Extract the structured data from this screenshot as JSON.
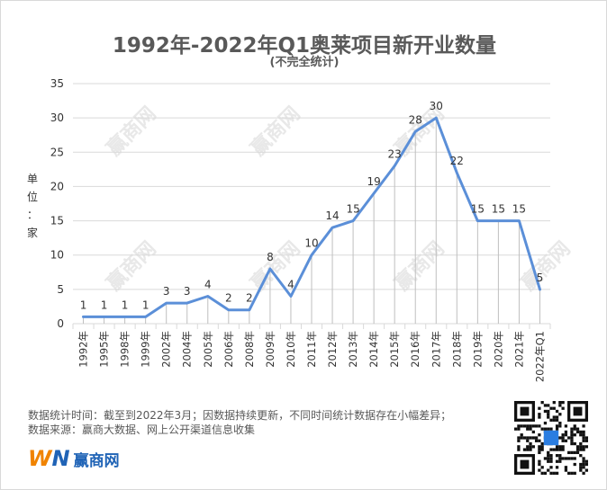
{
  "title": "1992年-2022年Q1奥莱项目新开业数量",
  "subtitle": "(不完全统计)",
  "y_unit": [
    "单",
    "位",
    "：",
    "家"
  ],
  "notes": [
    "数据统计时间：截至到2022年3月；因数据持续更新，不同时间统计数据存在小幅差异；",
    "数据来源：赢商大数据、网上公开渠道信息收集"
  ],
  "brand": {
    "mark_w": "W",
    "mark_n": "N",
    "name": "赢商网"
  },
  "watermark": "赢商网",
  "colors": {
    "line": "#5b8fd8",
    "grid": "#d9d9d9",
    "text": "#595959"
  },
  "chart_data": {
    "type": "line",
    "title": "1992年-2022年Q1奥莱项目新开业数量",
    "subtitle": "(不完全统计)",
    "ylabel": "单位：家",
    "xlabel": "",
    "ylim": [
      0,
      35
    ],
    "yticks": [
      0,
      5,
      10,
      15,
      20,
      25,
      30,
      35
    ],
    "grid": true,
    "categories": [
      "1992年",
      "1995年",
      "1998年",
      "1999年",
      "2002年",
      "2004年",
      "2005年",
      "2006年",
      "2008年",
      "2009年",
      "2010年",
      "2011年",
      "2012年",
      "2013年",
      "2014年",
      "2015年",
      "2016年",
      "2017年",
      "2018年",
      "2019年",
      "2020年",
      "2021年",
      "2022年Q1"
    ],
    "values": [
      1,
      1,
      1,
      1,
      3,
      3,
      4,
      2,
      2,
      8,
      4,
      10,
      14,
      15,
      19,
      23,
      28,
      30,
      22,
      15,
      15,
      15,
      5
    ],
    "data_labels": true
  }
}
